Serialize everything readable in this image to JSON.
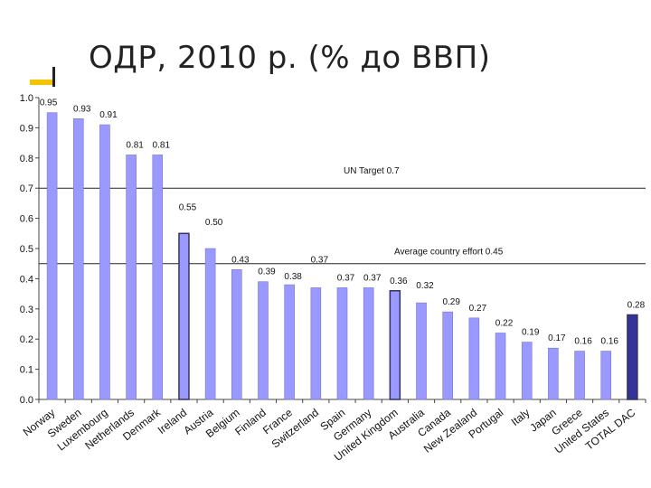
{
  "title": "ОДР, 2010 р. (% до ВВП)",
  "chart_data": {
    "type": "bar",
    "categories": [
      "Norway",
      "Sweden",
      "Luxembourg",
      "Netherlands",
      "Denmark",
      "Ireland",
      "Austria",
      "Belgium",
      "Finland",
      "France",
      "Switzerland",
      "Spain",
      "Germany",
      "United Kingdom",
      "Australia",
      "Canada",
      "New Zealand",
      "Portugal",
      "Italy",
      "Japan",
      "Greece",
      "United States",
      "TOTAL DAC"
    ],
    "values": [
      0.95,
      0.93,
      0.91,
      0.81,
      0.81,
      0.55,
      0.5,
      0.43,
      0.39,
      0.38,
      0.37,
      0.37,
      0.37,
      0.36,
      0.32,
      0.29,
      0.27,
      0.22,
      0.19,
      0.17,
      0.16,
      0.16,
      0.28
    ],
    "ylim": [
      0,
      1.0
    ],
    "yticks": [
      "0.0",
      "0.1",
      "0.2",
      "0.3",
      "0.4",
      "0.5",
      "0.6",
      "0.7",
      "0.8",
      "0.9",
      "1.0"
    ],
    "reference_lines": [
      {
        "label": "UN Target 0.7",
        "value": 0.7
      },
      {
        "label": "Average country effort 0.45",
        "value": 0.45
      }
    ],
    "colors": {
      "bar": "#9999ff",
      "highlight": "#333399",
      "outline": "#333366"
    },
    "highlight_indices": [
      5,
      13,
      22
    ]
  }
}
